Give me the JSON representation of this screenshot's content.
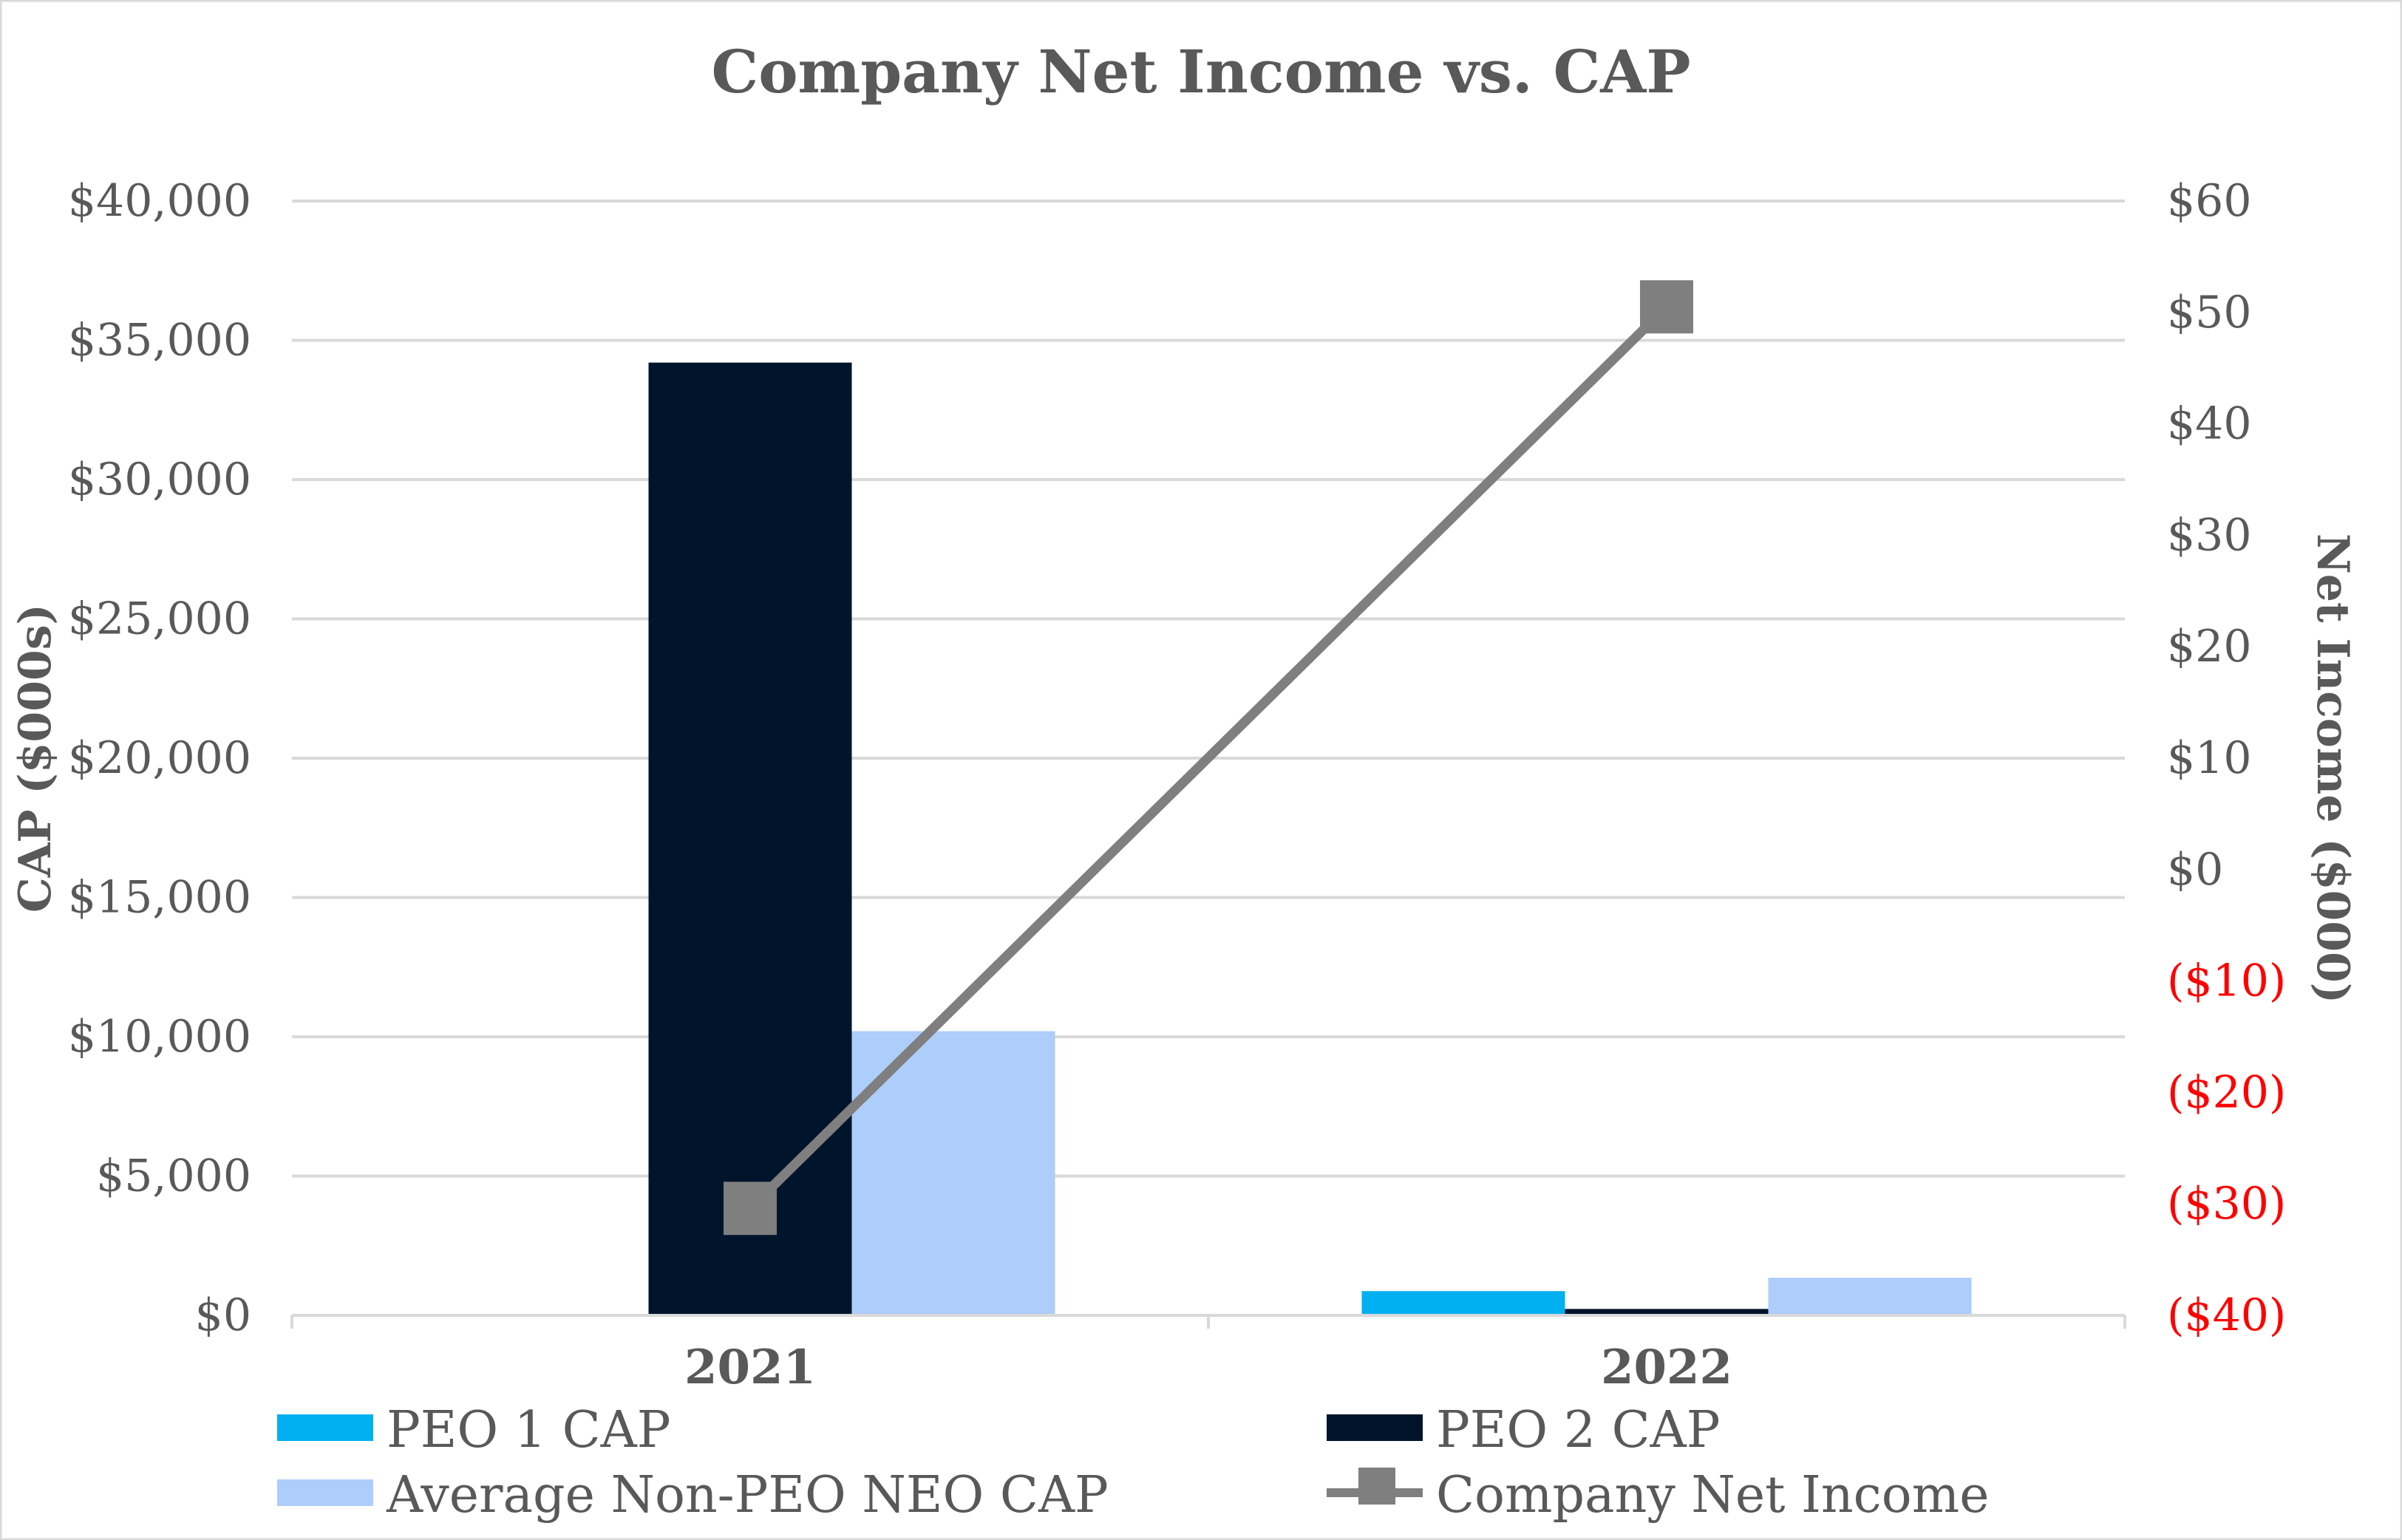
{
  "chart_data": {
    "type": "bar",
    "title": "Company Net Income vs. CAP",
    "categories": [
      "2021",
      "2022"
    ],
    "y_left": {
      "label": "CAP ($000s)",
      "range": [
        0,
        40000
      ],
      "step": 5000,
      "tick_labels": [
        "$0",
        "$5,000",
        "$10,000",
        "$15,000",
        "$20,000",
        "$25,000",
        "$30,000",
        "$35,000",
        "$40,000"
      ]
    },
    "y_right": {
      "label": "Net Income ($000)",
      "range": [
        -40,
        60
      ],
      "step": 10,
      "tick_labels": [
        "($40)",
        "($30)",
        "($20)",
        "($10)",
        "$0",
        "$10",
        "$20",
        "$30",
        "$40",
        "$50",
        "$60"
      ]
    },
    "grid": true,
    "legend_position": "bottom",
    "series": [
      {
        "name": "PEO 1 CAP",
        "type": "bar",
        "axis": "left",
        "color": "#00b0f0",
        "values": [
          0,
          870
        ]
      },
      {
        "name": "PEO 2 CAP",
        "type": "bar",
        "axis": "left",
        "color": "#00142c",
        "values": [
          34200,
          230
        ]
      },
      {
        "name": "Average Non-PEO NEO CAP",
        "type": "bar",
        "axis": "left",
        "color": "#adcdfb",
        "values": [
          10200,
          1350
        ]
      },
      {
        "name": "Company Net Income",
        "type": "line",
        "axis": "right",
        "color": "#7f7f7f",
        "marker": "square",
        "values": [
          -30.4,
          50.5
        ]
      }
    ]
  }
}
